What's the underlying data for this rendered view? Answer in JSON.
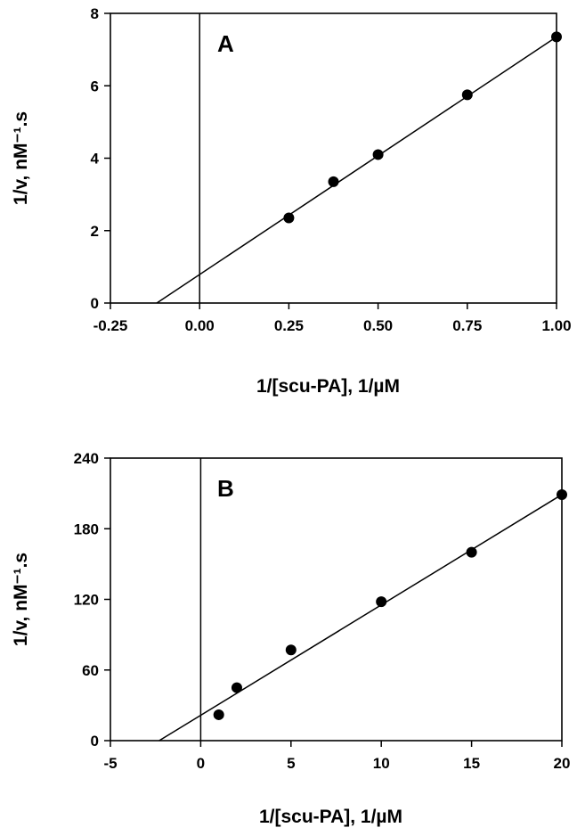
{
  "chart_data": [
    {
      "type": "scatter",
      "panel_label": "A",
      "xlabel": "1/[scu-PA],  1/µM",
      "ylabel": "1/v,  nM⁻¹.s",
      "xlim": [
        -0.25,
        1.0
      ],
      "ylim": [
        0,
        8
      ],
      "xticks": [
        -0.25,
        0.0,
        0.25,
        0.5,
        0.75,
        1.0
      ],
      "xtick_labels": [
        "-0.25",
        "0.00",
        "0.25",
        "0.50",
        "0.75",
        "1.00"
      ],
      "yticks": [
        0,
        2,
        4,
        6,
        8
      ],
      "ytick_labels": [
        "0",
        "2",
        "4",
        "6",
        "8"
      ],
      "zero_line": true,
      "grid": false,
      "series": [
        {
          "x": [
            0.25,
            0.375,
            0.5,
            0.75,
            1.0
          ],
          "y": [
            2.35,
            3.35,
            4.1,
            5.75,
            7.35
          ]
        }
      ],
      "fit_line": {
        "x": [
          -0.12,
          1.0
        ],
        "y": [
          0.0,
          7.35
        ]
      }
    },
    {
      "type": "scatter",
      "panel_label": "B",
      "xlabel": "1/[scu-PA],  1/µM",
      "ylabel": "1/v,  nM⁻¹.s",
      "xlim": [
        -5,
        20
      ],
      "ylim": [
        0,
        240
      ],
      "xticks": [
        -5,
        0,
        5,
        10,
        15,
        20
      ],
      "xtick_labels": [
        "-5",
        "0",
        "5",
        "10",
        "15",
        "20"
      ],
      "yticks": [
        0,
        60,
        120,
        180,
        240
      ],
      "ytick_labels": [
        "0",
        "60",
        "120",
        "180",
        "240"
      ],
      "zero_line": true,
      "grid": false,
      "series": [
        {
          "x": [
            1,
            2,
            5,
            10,
            15,
            20
          ],
          "y": [
            22,
            45,
            77,
            118,
            160,
            209
          ]
        }
      ],
      "fit_line": {
        "x": [
          -2.3,
          20
        ],
        "y": [
          0,
          209
        ]
      }
    }
  ]
}
